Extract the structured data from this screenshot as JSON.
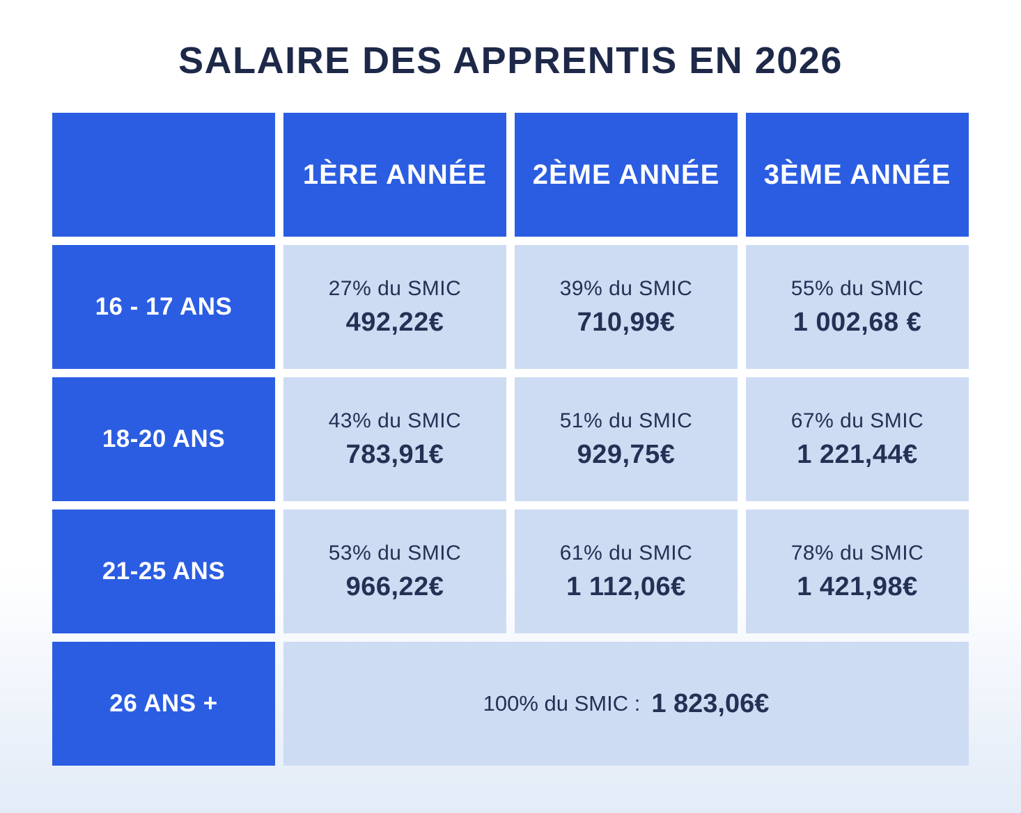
{
  "title": "SALAIRE DES APPRENTIS EN 2026",
  "colors": {
    "blue": "#2b5de2",
    "light_blue": "#cddcf3",
    "navy": "#1e2949"
  },
  "table": {
    "column_headers": [
      "1ÈRE ANNÉE",
      "2ÈME ANNÉE",
      "3ÈME ANNÉE"
    ],
    "rows": [
      {
        "label": "16 - 17 ANS",
        "cells": [
          {
            "percent": "27% du SMIC",
            "amount": "492,22€"
          },
          {
            "percent": "39% du SMIC",
            "amount": "710,99€"
          },
          {
            "percent": "55% du SMIC",
            "amount": "1 002,68 €"
          }
        ]
      },
      {
        "label": "18-20 ANS",
        "cells": [
          {
            "percent": "43% du SMIC",
            "amount": "783,91€"
          },
          {
            "percent": "51% du SMIC",
            "amount": "929,75€"
          },
          {
            "percent": "67% du SMIC",
            "amount": "1 221,44€"
          }
        ]
      },
      {
        "label": "21-25 ANS",
        "cells": [
          {
            "percent": "53% du SMIC",
            "amount": "966,22€"
          },
          {
            "percent": "61% du SMIC",
            "amount": "1 112,06€"
          },
          {
            "percent": "78% du SMIC",
            "amount": "1 421,98€"
          }
        ]
      }
    ],
    "footer_row": {
      "label": "26 ANS +",
      "percent": "100% du SMIC :",
      "amount": "1 823,06€"
    }
  },
  "chart_data": {
    "type": "table",
    "title": "SALAIRE DES APPRENTIS EN 2026",
    "columns": [
      "",
      "1ÈRE ANNÉE",
      "2ÈME ANNÉE",
      "3ÈME ANNÉE"
    ],
    "rows": [
      [
        "16 - 17 ANS",
        "27% du SMIC 492,22€",
        "39% du SMIC 710,99€",
        "55% du SMIC 1 002,68 €"
      ],
      [
        "18-20 ANS",
        "43% du SMIC 783,91€",
        "51% du SMIC 929,75€",
        "67% du SMIC 1 221,44€"
      ],
      [
        "21-25 ANS",
        "53% du SMIC 966,22€",
        "61% du SMIC 1 112,06€",
        "78% du SMIC 1 421,98€"
      ],
      [
        "26 ANS +",
        "100% du SMIC : 1 823,06€",
        "",
        ""
      ]
    ]
  }
}
